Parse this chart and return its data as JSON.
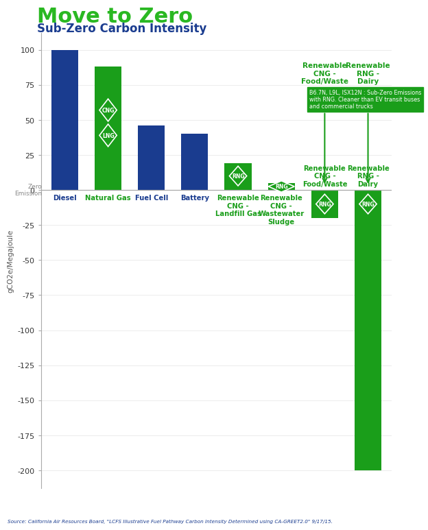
{
  "values": [
    100,
    88,
    46,
    40,
    19,
    5,
    -20,
    -200
  ],
  "bar_colors": [
    "#1a3c8f",
    "#1a9e1a",
    "#1a3c8f",
    "#1a3c8f",
    "#1a9e1a",
    "#1a9e1a",
    "#1a9e1a",
    "#1a9e1a"
  ],
  "label_colors": [
    "#1a3c8f",
    "#1a9e1a",
    "#1a3c8f",
    "#1a3c8f",
    "#1a9e1a",
    "#1a9e1a",
    "#1a9e1a",
    "#1a9e1a"
  ],
  "cat_labels": [
    "Diesel",
    "Natural Gas",
    "Fuel Cell",
    "Battery",
    "Renewable\nCNG -\nLandfill Gas",
    "Renewable\nCNG -\nWastewater\nSludge",
    "Renewable\nCNG -\nFood/Waste",
    "Renewable\nRNG -\nDairy"
  ],
  "title": "Move to Zero",
  "subtitle": "Sub-Zero Carbon Intensity",
  "title_color": "#2ab822",
  "subtitle_color": "#1a3c8f",
  "ylabel": "gCO2e/Megajoule",
  "ylabel_color": "#555555",
  "ylim": [
    -213,
    112
  ],
  "yticks": [
    100,
    75,
    50,
    25,
    0,
    -25,
    -50,
    -75,
    -100,
    -125,
    -150,
    -175,
    -200
  ],
  "zero_label": "Zero\nEmission",
  "source_text": "Source: California Air Resources Board, \"LCFS Illustrative Fuel Pathway Carbon Intensity Determined using CA-GREET2.0\" 9/17/15.",
  "source_color": "#1a3c8f",
  "annotation_box_text": "B6.7N, L9L, ISX12N : Sub-Zero Emissions\nwith RNG. Cleaner than EV transit buses\nand commercial trucks",
  "annotation_box_color": "#1a9e1a",
  "green_color": "#1a9e1a",
  "blue_color": "#1a3c8f",
  "bar_width": 0.62
}
